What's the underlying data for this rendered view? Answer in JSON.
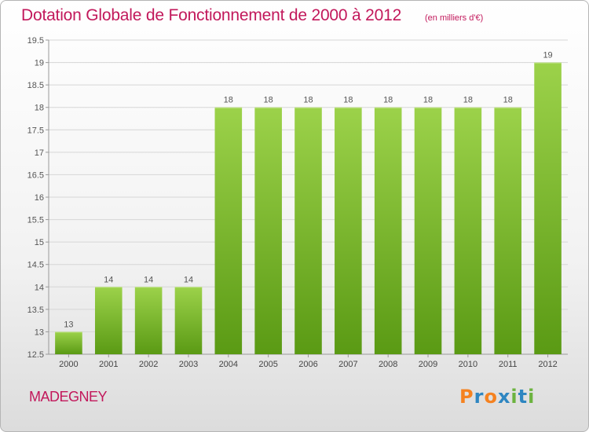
{
  "title": "Dotation Globale de Fonctionnement de 2000 à 2012",
  "subtitle": "(en milliers d'€)",
  "commune": "MADEGNEY",
  "logo": "Proxiti",
  "colors": {
    "title": "#c2185b",
    "bar_top": "#9cd24a",
    "bar_bottom": "#5a9a14",
    "logo_letters": [
      "#f58220",
      "#2e86c1",
      "#f58220",
      "#2e86c1",
      "#6cb33f",
      "#2e86c1",
      "#6cb33f"
    ]
  },
  "chart_data": {
    "type": "bar",
    "title": "Dotation Globale de Fonctionnement de 2000 à 2012",
    "categories": [
      "2000",
      "2001",
      "2002",
      "2003",
      "2004",
      "2005",
      "2006",
      "2007",
      "2008",
      "2009",
      "2010",
      "2011",
      "2012"
    ],
    "values": [
      13,
      14,
      14,
      14,
      18,
      18,
      18,
      18,
      18,
      18,
      18,
      18,
      19
    ],
    "data_labels": [
      "13",
      "14",
      "14",
      "14",
      "18",
      "18",
      "18",
      "18",
      "18",
      "18",
      "18",
      "18",
      "19"
    ],
    "ylim": [
      12.5,
      19.5
    ],
    "yticks": [
      12.5,
      13,
      13.5,
      14,
      14.5,
      15,
      15.5,
      16,
      16.5,
      17,
      17.5,
      18,
      18.5,
      19,
      19.5
    ],
    "ytick_labels": [
      "12.5",
      "13",
      "13.5",
      "14",
      "14.5",
      "15",
      "15.5",
      "16",
      "16.5",
      "17",
      "17.5",
      "18",
      "18.5",
      "19",
      "19.5"
    ],
    "grid": true,
    "xlabel": "",
    "ylabel": ""
  }
}
